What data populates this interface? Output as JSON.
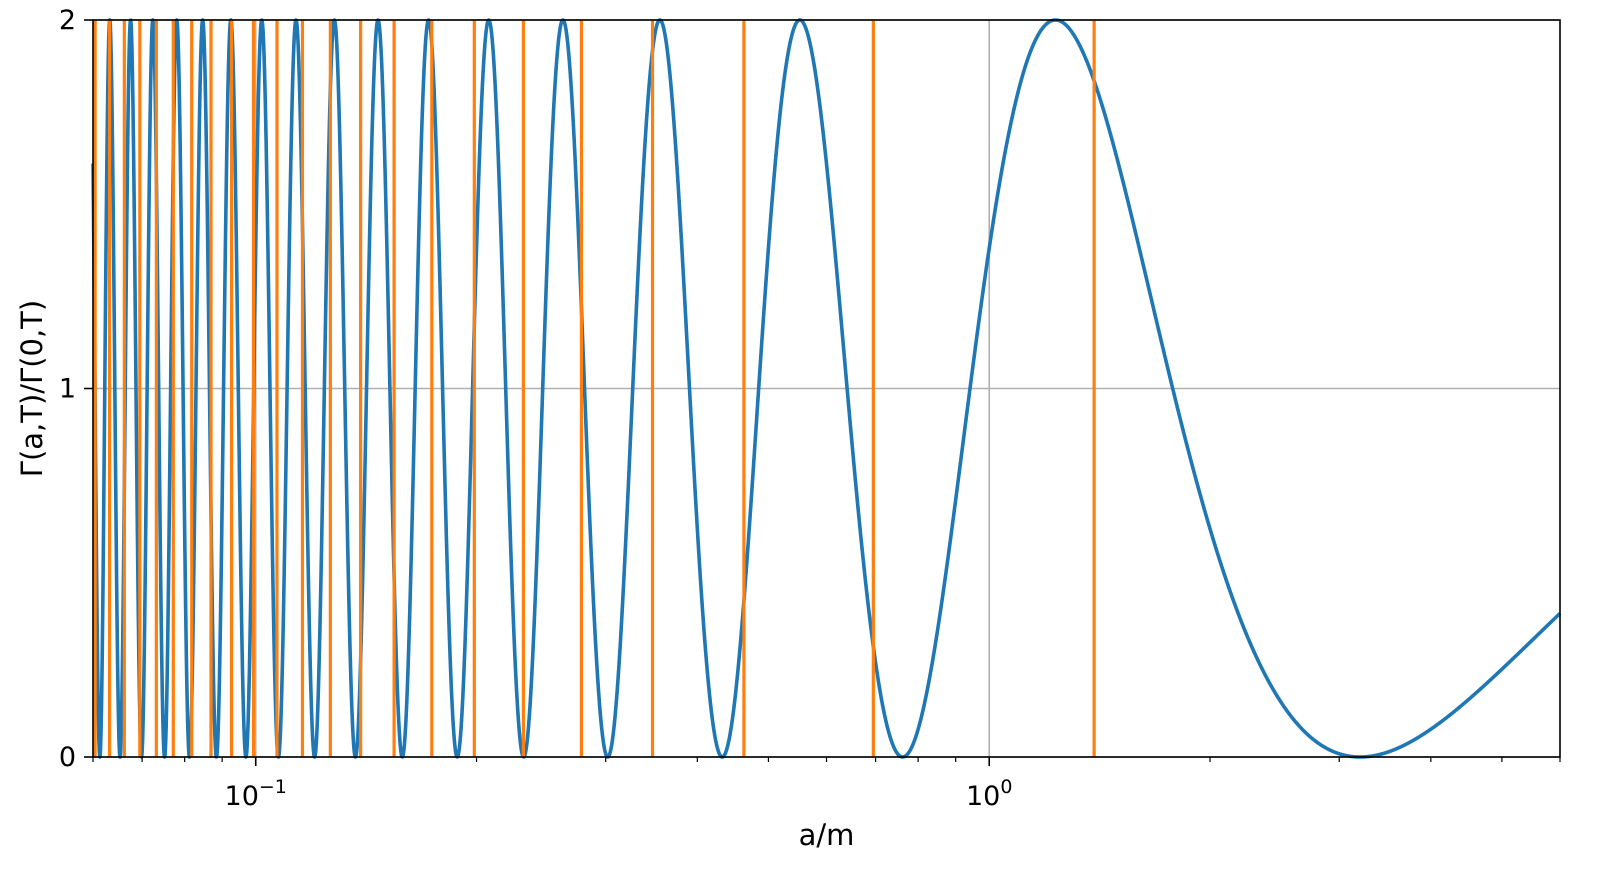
{
  "chart_data": {
    "type": "line",
    "xlabel": "a/m",
    "ylabel": "Γ(a,T)/Γ(0,T)",
    "x_scale": "log",
    "xlim": [
      0.06,
      6.0
    ],
    "ylim": [
      0,
      2
    ],
    "x_tick_labels": [
      {
        "value": 0.1,
        "base": "10",
        "exp": "−1"
      },
      {
        "value": 1,
        "base": "10",
        "exp": "0"
      }
    ],
    "y_ticks": [
      0,
      1,
      2
    ],
    "y_tick_labels": [
      "0",
      "1",
      "2"
    ],
    "grid": true,
    "curve": {
      "formula": "1 + cos(2*pi*m/a + phi)",
      "period_m": 1.0,
      "phase": 1.18,
      "color": "#1f77b4"
    },
    "vertical_lines": {
      "color": "#ff7f0e",
      "x": [
        1.39,
        0.695,
        0.463,
        0.3475,
        0.278,
        0.2317,
        0.1986,
        0.1738,
        0.1544,
        0.139,
        0.1264,
        0.1158,
        0.1069,
        0.0993,
        0.0927,
        0.0869,
        0.0818,
        0.0772,
        0.0732,
        0.0695,
        0.0662,
        0.0632,
        0.0604
      ]
    }
  }
}
